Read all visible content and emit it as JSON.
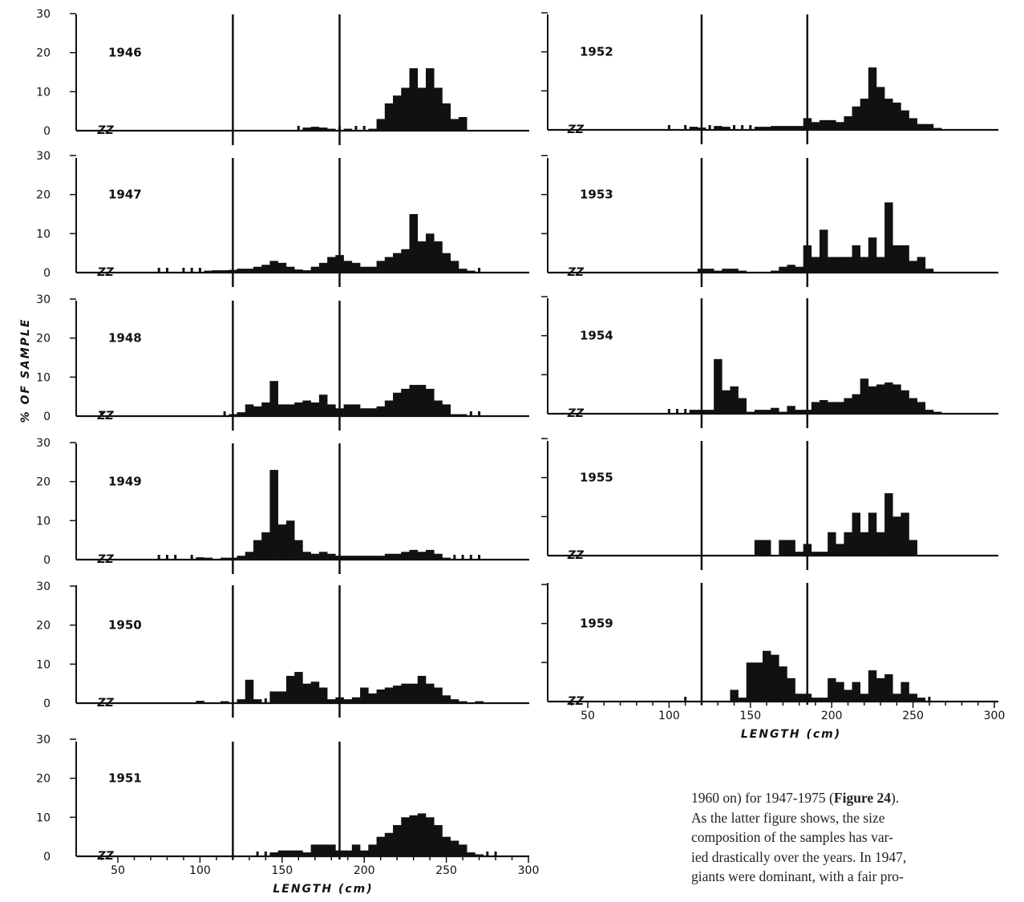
{
  "figure": {
    "ylabel": "% OF SAMPLE",
    "xlabel": "LENGTH (cm)",
    "break_mark": "ZZ",
    "ytick_labels": [
      "0",
      "10",
      "20",
      "30"
    ],
    "xtick_labels": [
      "50",
      "100",
      "150",
      "200",
      "250",
      "300"
    ]
  },
  "body_text": {
    "line1_pre": "1960 on) for 1947-1975 (",
    "line1_bold": "Figure 24",
    "line1_post": ").",
    "line2": "As the latter figure shows, the size",
    "line3": "composition of the samples has var-",
    "line4": "ied drastically over the years. In 1947,",
    "line5": "giants were dominant, with a fair pro-"
  },
  "chart_data": [
    {
      "type": "bar",
      "title": "1946",
      "xlim": [
        30,
        300
      ],
      "ylim": [
        0,
        30
      ],
      "bin_width": 5,
      "vlines": [
        120,
        185
      ],
      "series": [
        {
          "x": [
            160,
            165,
            170,
            175,
            180,
            185,
            190,
            195,
            200,
            205,
            210,
            215,
            220,
            225,
            230,
            235,
            240,
            245,
            250,
            255,
            260,
            265
          ],
          "values": [
            0.4,
            0.8,
            1,
            0.8,
            0.5,
            0.3,
            0.5,
            0.3,
            0.4,
            0.5,
            3,
            7,
            9,
            11,
            16,
            11,
            16,
            11,
            7,
            3,
            3.5,
            0
          ]
        }
      ]
    },
    {
      "type": "bar",
      "title": "1947",
      "xlim": [
        30,
        300
      ],
      "ylim": [
        0,
        30
      ],
      "bin_width": 5,
      "vlines": [
        120,
        185
      ],
      "series": [
        {
          "x": [
            75,
            80,
            90,
            95,
            100,
            105,
            110,
            115,
            120,
            125,
            130,
            135,
            140,
            145,
            150,
            155,
            160,
            165,
            170,
            175,
            180,
            185,
            190,
            195,
            200,
            205,
            210,
            215,
            220,
            225,
            230,
            235,
            240,
            245,
            250,
            255,
            260,
            265,
            270
          ],
          "values": [
            0.3,
            0.4,
            0.3,
            0.3,
            0.3,
            0.5,
            0.6,
            0.6,
            0.7,
            1,
            1,
            1.5,
            2,
            3,
            2.5,
            1.5,
            0.8,
            0.6,
            1.5,
            2.5,
            4,
            4.5,
            3,
            2.5,
            1.5,
            1.5,
            3,
            4,
            5,
            6,
            15,
            8,
            10,
            8,
            5,
            3,
            1,
            0.5,
            0.3
          ]
        }
      ]
    },
    {
      "type": "bar",
      "title": "1948",
      "xlim": [
        30,
        300
      ],
      "ylim": [
        0,
        30
      ],
      "bin_width": 5,
      "vlines": [
        120,
        185
      ],
      "series": [
        {
          "x": [
            40,
            115,
            120,
            125,
            130,
            135,
            140,
            145,
            150,
            155,
            160,
            165,
            170,
            175,
            180,
            185,
            190,
            195,
            200,
            205,
            210,
            215,
            220,
            225,
            230,
            235,
            240,
            245,
            250,
            255,
            260,
            265,
            270
          ],
          "values": [
            0.3,
            0.3,
            0.5,
            1,
            3,
            2.5,
            3.5,
            9,
            3,
            3,
            3.5,
            4,
            3.5,
            5.5,
            3,
            2,
            3,
            3,
            2,
            2,
            2.5,
            4,
            6,
            7,
            8,
            8,
            7,
            4,
            3,
            0.5,
            0.5,
            0.3,
            0.3
          ]
        }
      ]
    },
    {
      "type": "bar",
      "title": "1949",
      "xlim": [
        30,
        300
      ],
      "ylim": [
        0,
        30
      ],
      "bin_width": 5,
      "vlines": [
        120,
        185
      ],
      "series": [
        {
          "x": [
            75,
            80,
            85,
            95,
            100,
            105,
            115,
            120,
            125,
            130,
            135,
            140,
            145,
            150,
            155,
            160,
            165,
            170,
            175,
            180,
            185,
            190,
            195,
            200,
            205,
            210,
            215,
            220,
            225,
            230,
            235,
            240,
            245,
            250,
            255,
            260,
            265,
            270
          ],
          "values": [
            0.3,
            0.3,
            0.3,
            0.3,
            0.6,
            0.5,
            0.5,
            0.5,
            1,
            2,
            5,
            7,
            23,
            9,
            10,
            5,
            2,
            1.5,
            2,
            1.5,
            1,
            1,
            1,
            1,
            1,
            1,
            1.5,
            1.5,
            2,
            2.5,
            2,
            2.5,
            1.5,
            0.5,
            0.3,
            0.3,
            0.3,
            0.3
          ]
        }
      ]
    },
    {
      "type": "bar",
      "title": "1950",
      "xlim": [
        30,
        300
      ],
      "ylim": [
        0,
        30
      ],
      "bin_width": 5,
      "vlines": [
        120,
        185
      ],
      "series": [
        {
          "x": [
            100,
            115,
            125,
            130,
            135,
            140,
            145,
            150,
            155,
            160,
            165,
            170,
            175,
            180,
            185,
            190,
            195,
            200,
            205,
            210,
            215,
            220,
            225,
            230,
            235,
            240,
            245,
            250,
            255,
            260,
            270
          ],
          "values": [
            0.6,
            0.5,
            1,
            6,
            1,
            0.3,
            3,
            3,
            7,
            8,
            5,
            5.5,
            4,
            1,
            1.5,
            1,
            1.5,
            4,
            2.5,
            3.5,
            4,
            4.5,
            5,
            5,
            7,
            5,
            4,
            2,
            1,
            0.5,
            0.5
          ]
        }
      ]
    },
    {
      "type": "bar",
      "title": "1951",
      "xlim": [
        30,
        300
      ],
      "ylim": [
        0,
        30
      ],
      "bin_width": 5,
      "vlines": [
        120,
        185
      ],
      "series": [
        {
          "x": [
            135,
            140,
            145,
            150,
            155,
            160,
            165,
            170,
            175,
            180,
            185,
            190,
            195,
            200,
            205,
            210,
            215,
            220,
            225,
            230,
            235,
            240,
            245,
            250,
            255,
            260,
            265,
            270,
            275,
            280
          ],
          "values": [
            0.3,
            0.3,
            1,
            1.5,
            1.5,
            1.5,
            1,
            3,
            3,
            3,
            1.5,
            1.5,
            3,
            1.5,
            3,
            5,
            6,
            8,
            10,
            10.5,
            11,
            10,
            8,
            5,
            4,
            3,
            1,
            0.5,
            0.3,
            0.3
          ]
        }
      ]
    },
    {
      "type": "bar",
      "title": "1952",
      "xlim": [
        30,
        300
      ],
      "ylim": [
        0,
        30
      ],
      "bin_width": 5,
      "vlines": [
        120,
        185
      ],
      "series": [
        {
          "x": [
            100,
            110,
            115,
            120,
            125,
            130,
            135,
            140,
            145,
            150,
            155,
            160,
            165,
            170,
            175,
            180,
            185,
            190,
            195,
            200,
            205,
            210,
            215,
            220,
            225,
            230,
            235,
            240,
            245,
            250,
            255,
            260,
            265
          ],
          "values": [
            0.3,
            0.3,
            0.8,
            0.6,
            0.3,
            1,
            0.8,
            0.3,
            0.3,
            0.4,
            0.8,
            0.8,
            1,
            1,
            1,
            1,
            3,
            2,
            2.5,
            2.5,
            2,
            3.5,
            6,
            8,
            16,
            11,
            8,
            7,
            5,
            3,
            1.5,
            1.5,
            0.5
          ]
        }
      ]
    },
    {
      "type": "bar",
      "title": "1953",
      "xlim": [
        30,
        300
      ],
      "ylim": [
        0,
        30
      ],
      "bin_width": 5,
      "vlines": [
        120,
        185
      ],
      "series": [
        {
          "x": [
            120,
            125,
            130,
            135,
            140,
            145,
            165,
            170,
            175,
            180,
            185,
            190,
            195,
            200,
            205,
            210,
            215,
            220,
            225,
            230,
            235,
            240,
            245,
            250,
            255,
            260
          ],
          "values": [
            1,
            1,
            0.5,
            1,
            1,
            0.5,
            0.5,
            1.5,
            2,
            1.5,
            7,
            4,
            11,
            4,
            4,
            4,
            7,
            4,
            9,
            4,
            18,
            7,
            7,
            3,
            4,
            1
          ]
        }
      ]
    },
    {
      "type": "bar",
      "title": "1954",
      "xlim": [
        30,
        300
      ],
      "ylim": [
        0,
        30
      ],
      "bin_width": 5,
      "vlines": [
        120,
        185
      ],
      "series": [
        {
          "x": [
            100,
            105,
            110,
            115,
            120,
            125,
            130,
            135,
            140,
            145,
            150,
            155,
            160,
            165,
            170,
            175,
            180,
            185,
            190,
            195,
            200,
            205,
            210,
            215,
            220,
            225,
            230,
            235,
            240,
            245,
            250,
            255,
            260,
            265
          ],
          "values": [
            0.3,
            0.3,
            0.3,
            1,
            1,
            1,
            14,
            6,
            7,
            4,
            0.5,
            1,
            1,
            1.5,
            0.5,
            2,
            1,
            1,
            3,
            3.5,
            3,
            3,
            4,
            5,
            9,
            7,
            7.5,
            8,
            7.5,
            6,
            4,
            3,
            1,
            0.5
          ]
        }
      ]
    },
    {
      "type": "bar",
      "title": "1955",
      "xlim": [
        30,
        300
      ],
      "ylim": [
        0,
        30
      ],
      "bin_width": 5,
      "vlines": [
        120,
        185
      ],
      "series": [
        {
          "x": [
            155,
            160,
            170,
            175,
            180,
            185,
            190,
            195,
            200,
            205,
            210,
            215,
            220,
            225,
            230,
            235,
            240,
            245,
            250
          ],
          "values": [
            4,
            4,
            4,
            4,
            1,
            3,
            1,
            1,
            6,
            3,
            6,
            11,
            6,
            11,
            6,
            16,
            10,
            11,
            4
          ]
        }
      ]
    },
    {
      "type": "bar",
      "title": "1959",
      "xlim": [
        30,
        300
      ],
      "ylim": [
        0,
        30
      ],
      "bin_width": 5,
      "vlines": [
        120,
        185
      ],
      "series": [
        {
          "x": [
            110,
            140,
            145,
            150,
            155,
            160,
            165,
            170,
            175,
            180,
            185,
            190,
            195,
            200,
            205,
            210,
            215,
            220,
            225,
            230,
            235,
            240,
            245,
            250,
            255,
            260
          ],
          "values": [
            0.3,
            3,
            1,
            10,
            10,
            13,
            12,
            9,
            6,
            2,
            2,
            1,
            1,
            6,
            5,
            3,
            5,
            2,
            8,
            6,
            7,
            2,
            5,
            2,
            1,
            0.3
          ]
        }
      ]
    }
  ]
}
